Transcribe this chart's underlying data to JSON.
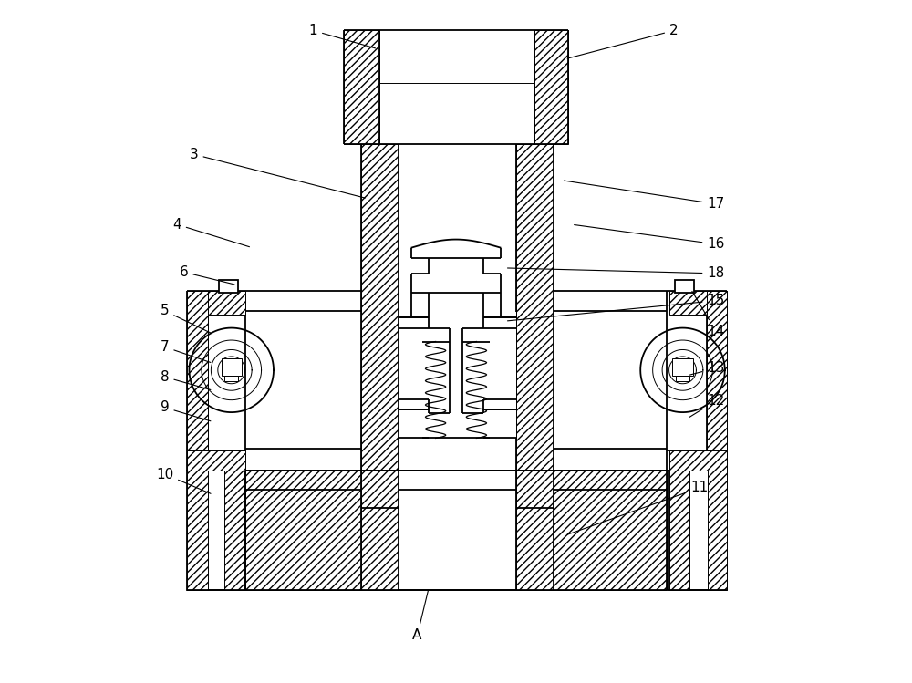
{
  "bg": "#ffffff",
  "lc": "#000000",
  "lw": 1.3,
  "lw2": 0.7,
  "figw": 10.0,
  "figh": 7.49,
  "dpi": 100,
  "anno": {
    "1": {
      "lxy": [
        0.29,
        0.957
      ],
      "txy": [
        0.385,
        0.93
      ]
    },
    "2": {
      "lxy": [
        0.82,
        0.957
      ],
      "txy": [
        0.66,
        0.915
      ]
    },
    "3": {
      "lxy": [
        0.115,
        0.775
      ],
      "txy": [
        0.37,
        0.71
      ]
    },
    "4": {
      "lxy": [
        0.09,
        0.672
      ],
      "txy": [
        0.2,
        0.638
      ]
    },
    "5": {
      "lxy": [
        0.072,
        0.545
      ],
      "txy": [
        0.145,
        0.51
      ]
    },
    "6": {
      "lxy": [
        0.1,
        0.602
      ],
      "txy": [
        0.178,
        0.583
      ]
    },
    "7": {
      "lxy": [
        0.072,
        0.492
      ],
      "txy": [
        0.143,
        0.468
      ]
    },
    "8": {
      "lxy": [
        0.072,
        0.448
      ],
      "txy": [
        0.143,
        0.428
      ]
    },
    "9": {
      "lxy": [
        0.072,
        0.403
      ],
      "txy": [
        0.143,
        0.382
      ]
    },
    "10": {
      "lxy": [
        0.072,
        0.305
      ],
      "txy": [
        0.143,
        0.275
      ]
    },
    "11": {
      "lxy": [
        0.858,
        0.285
      ],
      "txy": [
        0.66,
        0.215
      ]
    },
    "12": {
      "lxy": [
        0.882,
        0.413
      ],
      "txy": [
        0.84,
        0.387
      ]
    },
    "13": {
      "lxy": [
        0.882,
        0.461
      ],
      "txy": [
        0.84,
        0.45
      ]
    },
    "14": {
      "lxy": [
        0.882,
        0.515
      ],
      "txy": [
        0.845,
        0.577
      ]
    },
    "15": {
      "lxy": [
        0.882,
        0.56
      ],
      "txy": [
        0.572,
        0.53
      ]
    },
    "16": {
      "lxy": [
        0.882,
        0.643
      ],
      "txy": [
        0.67,
        0.672
      ]
    },
    "17": {
      "lxy": [
        0.882,
        0.702
      ],
      "txy": [
        0.655,
        0.737
      ]
    },
    "18": {
      "lxy": [
        0.882,
        0.6
      ],
      "txy": [
        0.572,
        0.608
      ]
    },
    "A": {
      "lxy": [
        0.443,
        0.068
      ],
      "txy": [
        0.46,
        0.138
      ]
    }
  }
}
